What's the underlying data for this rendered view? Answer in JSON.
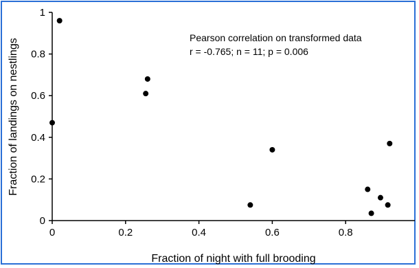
{
  "frame_color": "#2a6fd6",
  "chart_data": {
    "type": "scatter",
    "title": "",
    "xlabel": "Fraction of night with full brooding",
    "ylabel": "Fraction of landings on nestlings",
    "xlim": [
      0,
      1
    ],
    "ylim": [
      0,
      1
    ],
    "x_ticks": [
      0,
      0.2,
      0.4,
      0.6,
      0.8
    ],
    "x_tick_labels": [
      "0",
      "0.2",
      "0.4",
      "0.6",
      "0.8"
    ],
    "y_ticks": [
      0,
      0.2,
      0.4,
      0.6,
      0.8,
      1
    ],
    "y_tick_labels": [
      "0",
      "0.2",
      "0.4",
      "0.6",
      "0.8",
      "1"
    ],
    "grid": false,
    "legend": "none",
    "annotation": {
      "line1": "Pearson correlation on transformed data",
      "line2": "r = -0.765; n = 11; p = 0.006"
    },
    "points": [
      {
        "x": 0.0,
        "y": 0.47
      },
      {
        "x": 0.02,
        "y": 0.96
      },
      {
        "x": 0.255,
        "y": 0.61
      },
      {
        "x": 0.26,
        "y": 0.68
      },
      {
        "x": 0.54,
        "y": 0.075
      },
      {
        "x": 0.6,
        "y": 0.34
      },
      {
        "x": 0.86,
        "y": 0.15
      },
      {
        "x": 0.87,
        "y": 0.035
      },
      {
        "x": 0.895,
        "y": 0.11
      },
      {
        "x": 0.915,
        "y": 0.075
      },
      {
        "x": 0.92,
        "y": 0.37
      }
    ]
  }
}
